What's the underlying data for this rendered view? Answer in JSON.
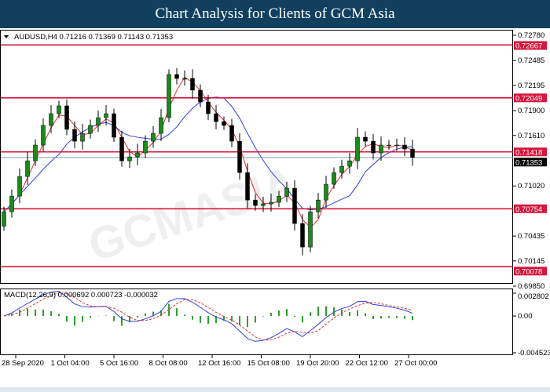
{
  "banner": {
    "title": "Chart Analysis for Clients of GCM Asia"
  },
  "watermark": "GCMASIA",
  "colors": {
    "banner": "#11405f",
    "resistance": "#d6163c",
    "bull": "#1a8a1a",
    "bear": "#000000",
    "ma_fast": "#e03030",
    "ma_slow": "#2f3fe0",
    "macd_hist": "#2ea02e",
    "macd_line": "#2f3fe0",
    "signal_line": "#e03030"
  },
  "chart_data": {
    "type": "candlestick",
    "symbol_header": "AUDUSD,H4  0.71216 0.71369 0.71143 0.71353",
    "ylim": [
      0.6985,
      0.7278
    ],
    "y_ticks": [
      "0.72780",
      "0.72485",
      "0.72195",
      "0.71900",
      "0.71610",
      "0.71020",
      "0.70435",
      "0.70145",
      "0.69850"
    ],
    "x_ticks": [
      "28 Sep 2020",
      "1 Oct 04:00",
      "5 Oct 16:00",
      "8 Oct 08:00",
      "12 Oct 16:00",
      "15 Oct 08:00",
      "19 Oct 20:00",
      "22 Oct 12:00",
      "27 Oct 00:00"
    ],
    "levels": [
      {
        "value": 0.72667,
        "label": "0.72667"
      },
      {
        "value": 0.72049,
        "label": "0.72049"
      },
      {
        "value": 0.71418,
        "label": "0.71418"
      },
      {
        "value": 0.70754,
        "label": "0.70754"
      },
      {
        "value": 0.70078,
        "label": "0.70078"
      }
    ],
    "current_price": {
      "value": 0.71353,
      "label": "0.71353"
    },
    "closes": [
      0.70719,
      0.70902,
      0.71131,
      0.71314,
      0.71498,
      0.71727,
      0.71864,
      0.71956,
      0.71681,
      0.71543,
      0.71635,
      0.71727,
      0.71818,
      0.71864,
      0.71589,
      0.71314,
      0.7136,
      0.71406,
      0.71543,
      0.71635,
      0.71818,
      0.72322,
      0.72276,
      0.72276,
      0.72139,
      0.72001,
      0.71864,
      0.71772,
      0.71727,
      0.71543,
      0.71177,
      0.70856,
      0.70792,
      0.70811,
      0.70829,
      0.70902,
      0.70994,
      0.70582,
      0.70307,
      0.70719,
      0.70856,
      0.7104,
      0.71177,
      0.7125,
      0.71314,
      0.71589,
      0.71543,
      0.71406,
      0.71498,
      0.71498,
      0.71498,
      0.71452,
      0.71353
    ],
    "open_first": 0.7055,
    "macd": {
      "label": "MACD(12,26,9) 0.000692 0.000723 -0.000032",
      "ylim": [
        -0.004523,
        0.002802
      ],
      "y_ticks": [
        "0.002802",
        "0.00",
        "-0.004523"
      ]
    }
  }
}
